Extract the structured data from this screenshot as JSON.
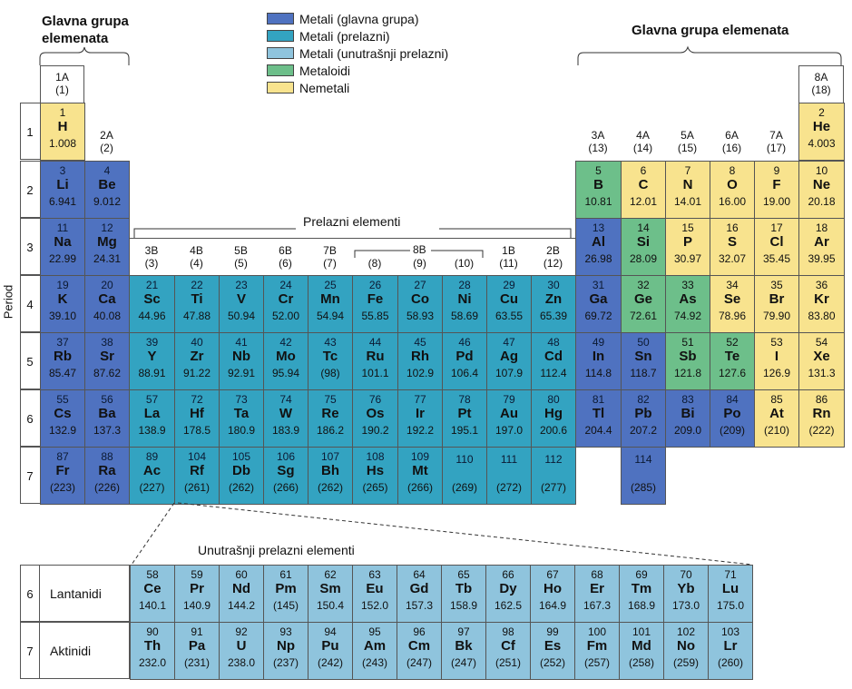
{
  "colors": {
    "main_metal": "#4f72c0",
    "transition": "#33a3c1",
    "inner_transition": "#8fc4dd",
    "metalloid": "#6dbf8a",
    "nonmetal": "#f8e38e"
  },
  "legend": [
    {
      "label": "Metali (glavna grupa)",
      "cat": "main_metal"
    },
    {
      "label": "Metali (prelazni)",
      "cat": "transition"
    },
    {
      "label": "Metali (unutrašnji prelazni)",
      "cat": "inner_transition"
    },
    {
      "label": "Metaloidi",
      "cat": "metalloid"
    },
    {
      "label": "Nemetali",
      "cat": "nonmetal"
    }
  ],
  "labels": {
    "main_group_left": "Glavna grupa\nelemenata",
    "main_group_right": "Glavna grupa elemenata",
    "transition_elements": "Prelazni elementi",
    "inner_transition_elements": "Unutrašnji prelazni elementi",
    "period_axis": "Period",
    "group_8b": "8B",
    "lanthanides": "Lantanidi",
    "actinides": "Aktinidi"
  },
  "group_headers": [
    {
      "col": 1,
      "a": "1A",
      "b": "(1)"
    },
    {
      "col": 2,
      "a": "2A",
      "b": "(2)"
    },
    {
      "col": 3,
      "a": "3B",
      "b": "(3)"
    },
    {
      "col": 4,
      "a": "4B",
      "b": "(4)"
    },
    {
      "col": 5,
      "a": "5B",
      "b": "(5)"
    },
    {
      "col": 6,
      "a": "6B",
      "b": "(6)"
    },
    {
      "col": 7,
      "a": "7B",
      "b": "(7)"
    },
    {
      "col": 8,
      "a": "",
      "b": "(8)"
    },
    {
      "col": 9,
      "a": "",
      "b": "(9)"
    },
    {
      "col": 10,
      "a": "",
      "b": "(10)"
    },
    {
      "col": 11,
      "a": "1B",
      "b": "(11)"
    },
    {
      "col": 12,
      "a": "2B",
      "b": "(12)"
    },
    {
      "col": 13,
      "a": "3A",
      "b": "(13)"
    },
    {
      "col": 14,
      "a": "4A",
      "b": "(14)"
    },
    {
      "col": 15,
      "a": "5A",
      "b": "(15)"
    },
    {
      "col": 16,
      "a": "6A",
      "b": "(16)"
    },
    {
      "col": 17,
      "a": "7A",
      "b": "(17)"
    },
    {
      "col": 18,
      "a": "8A",
      "b": "(18)"
    }
  ],
  "periods": [
    "1",
    "2",
    "3",
    "4",
    "5",
    "6",
    "7"
  ],
  "elements": [
    {
      "n": "1",
      "s": "H",
      "m": "1.008",
      "p": 1,
      "g": 1,
      "c": "nonmetal"
    },
    {
      "n": "2",
      "s": "He",
      "m": "4.003",
      "p": 1,
      "g": 18,
      "c": "nonmetal"
    },
    {
      "n": "3",
      "s": "Li",
      "m": "6.941",
      "p": 2,
      "g": 1,
      "c": "main_metal"
    },
    {
      "n": "4",
      "s": "Be",
      "m": "9.012",
      "p": 2,
      "g": 2,
      "c": "main_metal"
    },
    {
      "n": "5",
      "s": "B",
      "m": "10.81",
      "p": 2,
      "g": 13,
      "c": "metalloid"
    },
    {
      "n": "6",
      "s": "C",
      "m": "12.01",
      "p": 2,
      "g": 14,
      "c": "nonmetal"
    },
    {
      "n": "7",
      "s": "N",
      "m": "14.01",
      "p": 2,
      "g": 15,
      "c": "nonmetal"
    },
    {
      "n": "8",
      "s": "O",
      "m": "16.00",
      "p": 2,
      "g": 16,
      "c": "nonmetal"
    },
    {
      "n": "9",
      "s": "F",
      "m": "19.00",
      "p": 2,
      "g": 17,
      "c": "nonmetal"
    },
    {
      "n": "10",
      "s": "Ne",
      "m": "20.18",
      "p": 2,
      "g": 18,
      "c": "nonmetal"
    },
    {
      "n": "11",
      "s": "Na",
      "m": "22.99",
      "p": 3,
      "g": 1,
      "c": "main_metal"
    },
    {
      "n": "12",
      "s": "Mg",
      "m": "24.31",
      "p": 3,
      "g": 2,
      "c": "main_metal"
    },
    {
      "n": "13",
      "s": "Al",
      "m": "26.98",
      "p": 3,
      "g": 13,
      "c": "main_metal"
    },
    {
      "n": "14",
      "s": "Si",
      "m": "28.09",
      "p": 3,
      "g": 14,
      "c": "metalloid"
    },
    {
      "n": "15",
      "s": "P",
      "m": "30.97",
      "p": 3,
      "g": 15,
      "c": "nonmetal"
    },
    {
      "n": "16",
      "s": "S",
      "m": "32.07",
      "p": 3,
      "g": 16,
      "c": "nonmetal"
    },
    {
      "n": "17",
      "s": "Cl",
      "m": "35.45",
      "p": 3,
      "g": 17,
      "c": "nonmetal"
    },
    {
      "n": "18",
      "s": "Ar",
      "m": "39.95",
      "p": 3,
      "g": 18,
      "c": "nonmetal"
    },
    {
      "n": "19",
      "s": "K",
      "m": "39.10",
      "p": 4,
      "g": 1,
      "c": "main_metal"
    },
    {
      "n": "20",
      "s": "Ca",
      "m": "40.08",
      "p": 4,
      "g": 2,
      "c": "main_metal"
    },
    {
      "n": "21",
      "s": "Sc",
      "m": "44.96",
      "p": 4,
      "g": 3,
      "c": "transition"
    },
    {
      "n": "22",
      "s": "Ti",
      "m": "47.88",
      "p": 4,
      "g": 4,
      "c": "transition"
    },
    {
      "n": "23",
      "s": "V",
      "m": "50.94",
      "p": 4,
      "g": 5,
      "c": "transition"
    },
    {
      "n": "24",
      "s": "Cr",
      "m": "52.00",
      "p": 4,
      "g": 6,
      "c": "transition"
    },
    {
      "n": "25",
      "s": "Mn",
      "m": "54.94",
      "p": 4,
      "g": 7,
      "c": "transition"
    },
    {
      "n": "26",
      "s": "Fe",
      "m": "55.85",
      "p": 4,
      "g": 8,
      "c": "transition"
    },
    {
      "n": "27",
      "s": "Co",
      "m": "58.93",
      "p": 4,
      "g": 9,
      "c": "transition"
    },
    {
      "n": "28",
      "s": "Ni",
      "m": "58.69",
      "p": 4,
      "g": 10,
      "c": "transition"
    },
    {
      "n": "29",
      "s": "Cu",
      "m": "63.55",
      "p": 4,
      "g": 11,
      "c": "transition"
    },
    {
      "n": "30",
      "s": "Zn",
      "m": "65.39",
      "p": 4,
      "g": 12,
      "c": "transition"
    },
    {
      "n": "31",
      "s": "Ga",
      "m": "69.72",
      "p": 4,
      "g": 13,
      "c": "main_metal"
    },
    {
      "n": "32",
      "s": "Ge",
      "m": "72.61",
      "p": 4,
      "g": 14,
      "c": "metalloid"
    },
    {
      "n": "33",
      "s": "As",
      "m": "74.92",
      "p": 4,
      "g": 15,
      "c": "metalloid"
    },
    {
      "n": "34",
      "s": "Se",
      "m": "78.96",
      "p": 4,
      "g": 16,
      "c": "nonmetal"
    },
    {
      "n": "35",
      "s": "Br",
      "m": "79.90",
      "p": 4,
      "g": 17,
      "c": "nonmetal"
    },
    {
      "n": "36",
      "s": "Kr",
      "m": "83.80",
      "p": 4,
      "g": 18,
      "c": "nonmetal"
    },
    {
      "n": "37",
      "s": "Rb",
      "m": "85.47",
      "p": 5,
      "g": 1,
      "c": "main_metal"
    },
    {
      "n": "38",
      "s": "Sr",
      "m": "87.62",
      "p": 5,
      "g": 2,
      "c": "main_metal"
    },
    {
      "n": "39",
      "s": "Y",
      "m": "88.91",
      "p": 5,
      "g": 3,
      "c": "transition"
    },
    {
      "n": "40",
      "s": "Zr",
      "m": "91.22",
      "p": 5,
      "g": 4,
      "c": "transition"
    },
    {
      "n": "41",
      "s": "Nb",
      "m": "92.91",
      "p": 5,
      "g": 5,
      "c": "transition"
    },
    {
      "n": "42",
      "s": "Mo",
      "m": "95.94",
      "p": 5,
      "g": 6,
      "c": "transition"
    },
    {
      "n": "43",
      "s": "Tc",
      "m": "(98)",
      "p": 5,
      "g": 7,
      "c": "transition"
    },
    {
      "n": "44",
      "s": "Ru",
      "m": "101.1",
      "p": 5,
      "g": 8,
      "c": "transition"
    },
    {
      "n": "45",
      "s": "Rh",
      "m": "102.9",
      "p": 5,
      "g": 9,
      "c": "transition"
    },
    {
      "n": "46",
      "s": "Pd",
      "m": "106.4",
      "p": 5,
      "g": 10,
      "c": "transition"
    },
    {
      "n": "47",
      "s": "Ag",
      "m": "107.9",
      "p": 5,
      "g": 11,
      "c": "transition"
    },
    {
      "n": "48",
      "s": "Cd",
      "m": "112.4",
      "p": 5,
      "g": 12,
      "c": "transition"
    },
    {
      "n": "49",
      "s": "In",
      "m": "114.8",
      "p": 5,
      "g": 13,
      "c": "main_metal"
    },
    {
      "n": "50",
      "s": "Sn",
      "m": "118.7",
      "p": 5,
      "g": 14,
      "c": "main_metal"
    },
    {
      "n": "51",
      "s": "Sb",
      "m": "121.8",
      "p": 5,
      "g": 15,
      "c": "metalloid"
    },
    {
      "n": "52",
      "s": "Te",
      "m": "127.6",
      "p": 5,
      "g": 16,
      "c": "metalloid"
    },
    {
      "n": "53",
      "s": "I",
      "m": "126.9",
      "p": 5,
      "g": 17,
      "c": "nonmetal"
    },
    {
      "n": "54",
      "s": "Xe",
      "m": "131.3",
      "p": 5,
      "g": 18,
      "c": "nonmetal"
    },
    {
      "n": "55",
      "s": "Cs",
      "m": "132.9",
      "p": 6,
      "g": 1,
      "c": "main_metal"
    },
    {
      "n": "56",
      "s": "Ba",
      "m": "137.3",
      "p": 6,
      "g": 2,
      "c": "main_metal"
    },
    {
      "n": "57",
      "s": "La",
      "m": "138.9",
      "p": 6,
      "g": 3,
      "c": "transition"
    },
    {
      "n": "72",
      "s": "Hf",
      "m": "178.5",
      "p": 6,
      "g": 4,
      "c": "transition"
    },
    {
      "n": "73",
      "s": "Ta",
      "m": "180.9",
      "p": 6,
      "g": 5,
      "c": "transition"
    },
    {
      "n": "74",
      "s": "W",
      "m": "183.9",
      "p": 6,
      "g": 6,
      "c": "transition"
    },
    {
      "n": "75",
      "s": "Re",
      "m": "186.2",
      "p": 6,
      "g": 7,
      "c": "transition"
    },
    {
      "n": "76",
      "s": "Os",
      "m": "190.2",
      "p": 6,
      "g": 8,
      "c": "transition"
    },
    {
      "n": "77",
      "s": "Ir",
      "m": "192.2",
      "p": 6,
      "g": 9,
      "c": "transition"
    },
    {
      "n": "78",
      "s": "Pt",
      "m": "195.1",
      "p": 6,
      "g": 10,
      "c": "transition"
    },
    {
      "n": "79",
      "s": "Au",
      "m": "197.0",
      "p": 6,
      "g": 11,
      "c": "transition"
    },
    {
      "n": "80",
      "s": "Hg",
      "m": "200.6",
      "p": 6,
      "g": 12,
      "c": "transition"
    },
    {
      "n": "81",
      "s": "Tl",
      "m": "204.4",
      "p": 6,
      "g": 13,
      "c": "main_metal"
    },
    {
      "n": "82",
      "s": "Pb",
      "m": "207.2",
      "p": 6,
      "g": 14,
      "c": "main_metal"
    },
    {
      "n": "83",
      "s": "Bi",
      "m": "209.0",
      "p": 6,
      "g": 15,
      "c": "main_metal"
    },
    {
      "n": "84",
      "s": "Po",
      "m": "(209)",
      "p": 6,
      "g": 16,
      "c": "main_metal"
    },
    {
      "n": "85",
      "s": "At",
      "m": "(210)",
      "p": 6,
      "g": 17,
      "c": "nonmetal"
    },
    {
      "n": "86",
      "s": "Rn",
      "m": "(222)",
      "p": 6,
      "g": 18,
      "c": "nonmetal"
    },
    {
      "n": "87",
      "s": "Fr",
      "m": "(223)",
      "p": 7,
      "g": 1,
      "c": "main_metal"
    },
    {
      "n": "88",
      "s": "Ra",
      "m": "(226)",
      "p": 7,
      "g": 2,
      "c": "main_metal"
    },
    {
      "n": "89",
      "s": "Ac",
      "m": "(227)",
      "p": 7,
      "g": 3,
      "c": "transition"
    },
    {
      "n": "104",
      "s": "Rf",
      "m": "(261)",
      "p": 7,
      "g": 4,
      "c": "transition"
    },
    {
      "n": "105",
      "s": "Db",
      "m": "(262)",
      "p": 7,
      "g": 5,
      "c": "transition"
    },
    {
      "n": "106",
      "s": "Sg",
      "m": "(266)",
      "p": 7,
      "g": 6,
      "c": "transition"
    },
    {
      "n": "107",
      "s": "Bh",
      "m": "(262)",
      "p": 7,
      "g": 7,
      "c": "transition"
    },
    {
      "n": "108",
      "s": "Hs",
      "m": "(265)",
      "p": 7,
      "g": 8,
      "c": "transition"
    },
    {
      "n": "109",
      "s": "Mt",
      "m": "(266)",
      "p": 7,
      "g": 9,
      "c": "transition"
    },
    {
      "n": "110",
      "s": "",
      "m": "(269)",
      "p": 7,
      "g": 10,
      "c": "transition"
    },
    {
      "n": "111",
      "s": "",
      "m": "(272)",
      "p": 7,
      "g": 11,
      "c": "transition"
    },
    {
      "n": "112",
      "s": "",
      "m": "(277)",
      "p": 7,
      "g": 12,
      "c": "transition"
    },
    {
      "n": "114",
      "s": "",
      "m": "(285)",
      "p": 7,
      "g": 14,
      "c": "main_metal"
    }
  ],
  "inner_rows": [
    {
      "period": "6",
      "name": "Lantanidi",
      "items": [
        {
          "n": "58",
          "s": "Ce",
          "m": "140.1"
        },
        {
          "n": "59",
          "s": "Pr",
          "m": "140.9"
        },
        {
          "n": "60",
          "s": "Nd",
          "m": "144.2"
        },
        {
          "n": "61",
          "s": "Pm",
          "m": "(145)"
        },
        {
          "n": "62",
          "s": "Sm",
          "m": "150.4"
        },
        {
          "n": "63",
          "s": "Eu",
          "m": "152.0"
        },
        {
          "n": "64",
          "s": "Gd",
          "m": "157.3"
        },
        {
          "n": "65",
          "s": "Tb",
          "m": "158.9"
        },
        {
          "n": "66",
          "s": "Dy",
          "m": "162.5"
        },
        {
          "n": "67",
          "s": "Ho",
          "m": "164.9"
        },
        {
          "n": "68",
          "s": "Er",
          "m": "167.3"
        },
        {
          "n": "69",
          "s": "Tm",
          "m": "168.9"
        },
        {
          "n": "70",
          "s": "Yb",
          "m": "173.0"
        },
        {
          "n": "71",
          "s": "Lu",
          "m": "175.0"
        }
      ]
    },
    {
      "period": "7",
      "name": "Aktinidi",
      "items": [
        {
          "n": "90",
          "s": "Th",
          "m": "232.0"
        },
        {
          "n": "91",
          "s": "Pa",
          "m": "(231)"
        },
        {
          "n": "92",
          "s": "U",
          "m": "238.0"
        },
        {
          "n": "93",
          "s": "Np",
          "m": "(237)"
        },
        {
          "n": "94",
          "s": "Pu",
          "m": "(242)"
        },
        {
          "n": "95",
          "s": "Am",
          "m": "(243)"
        },
        {
          "n": "96",
          "s": "Cm",
          "m": "(247)"
        },
        {
          "n": "97",
          "s": "Bk",
          "m": "(247)"
        },
        {
          "n": "98",
          "s": "Cf",
          "m": "(251)"
        },
        {
          "n": "99",
          "s": "Es",
          "m": "(252)"
        },
        {
          "n": "100",
          "s": "Fm",
          "m": "(257)"
        },
        {
          "n": "101",
          "s": "Md",
          "m": "(258)"
        },
        {
          "n": "102",
          "s": "No",
          "m": "(259)"
        },
        {
          "n": "103",
          "s": "Lr",
          "m": "(260)"
        }
      ]
    }
  ]
}
